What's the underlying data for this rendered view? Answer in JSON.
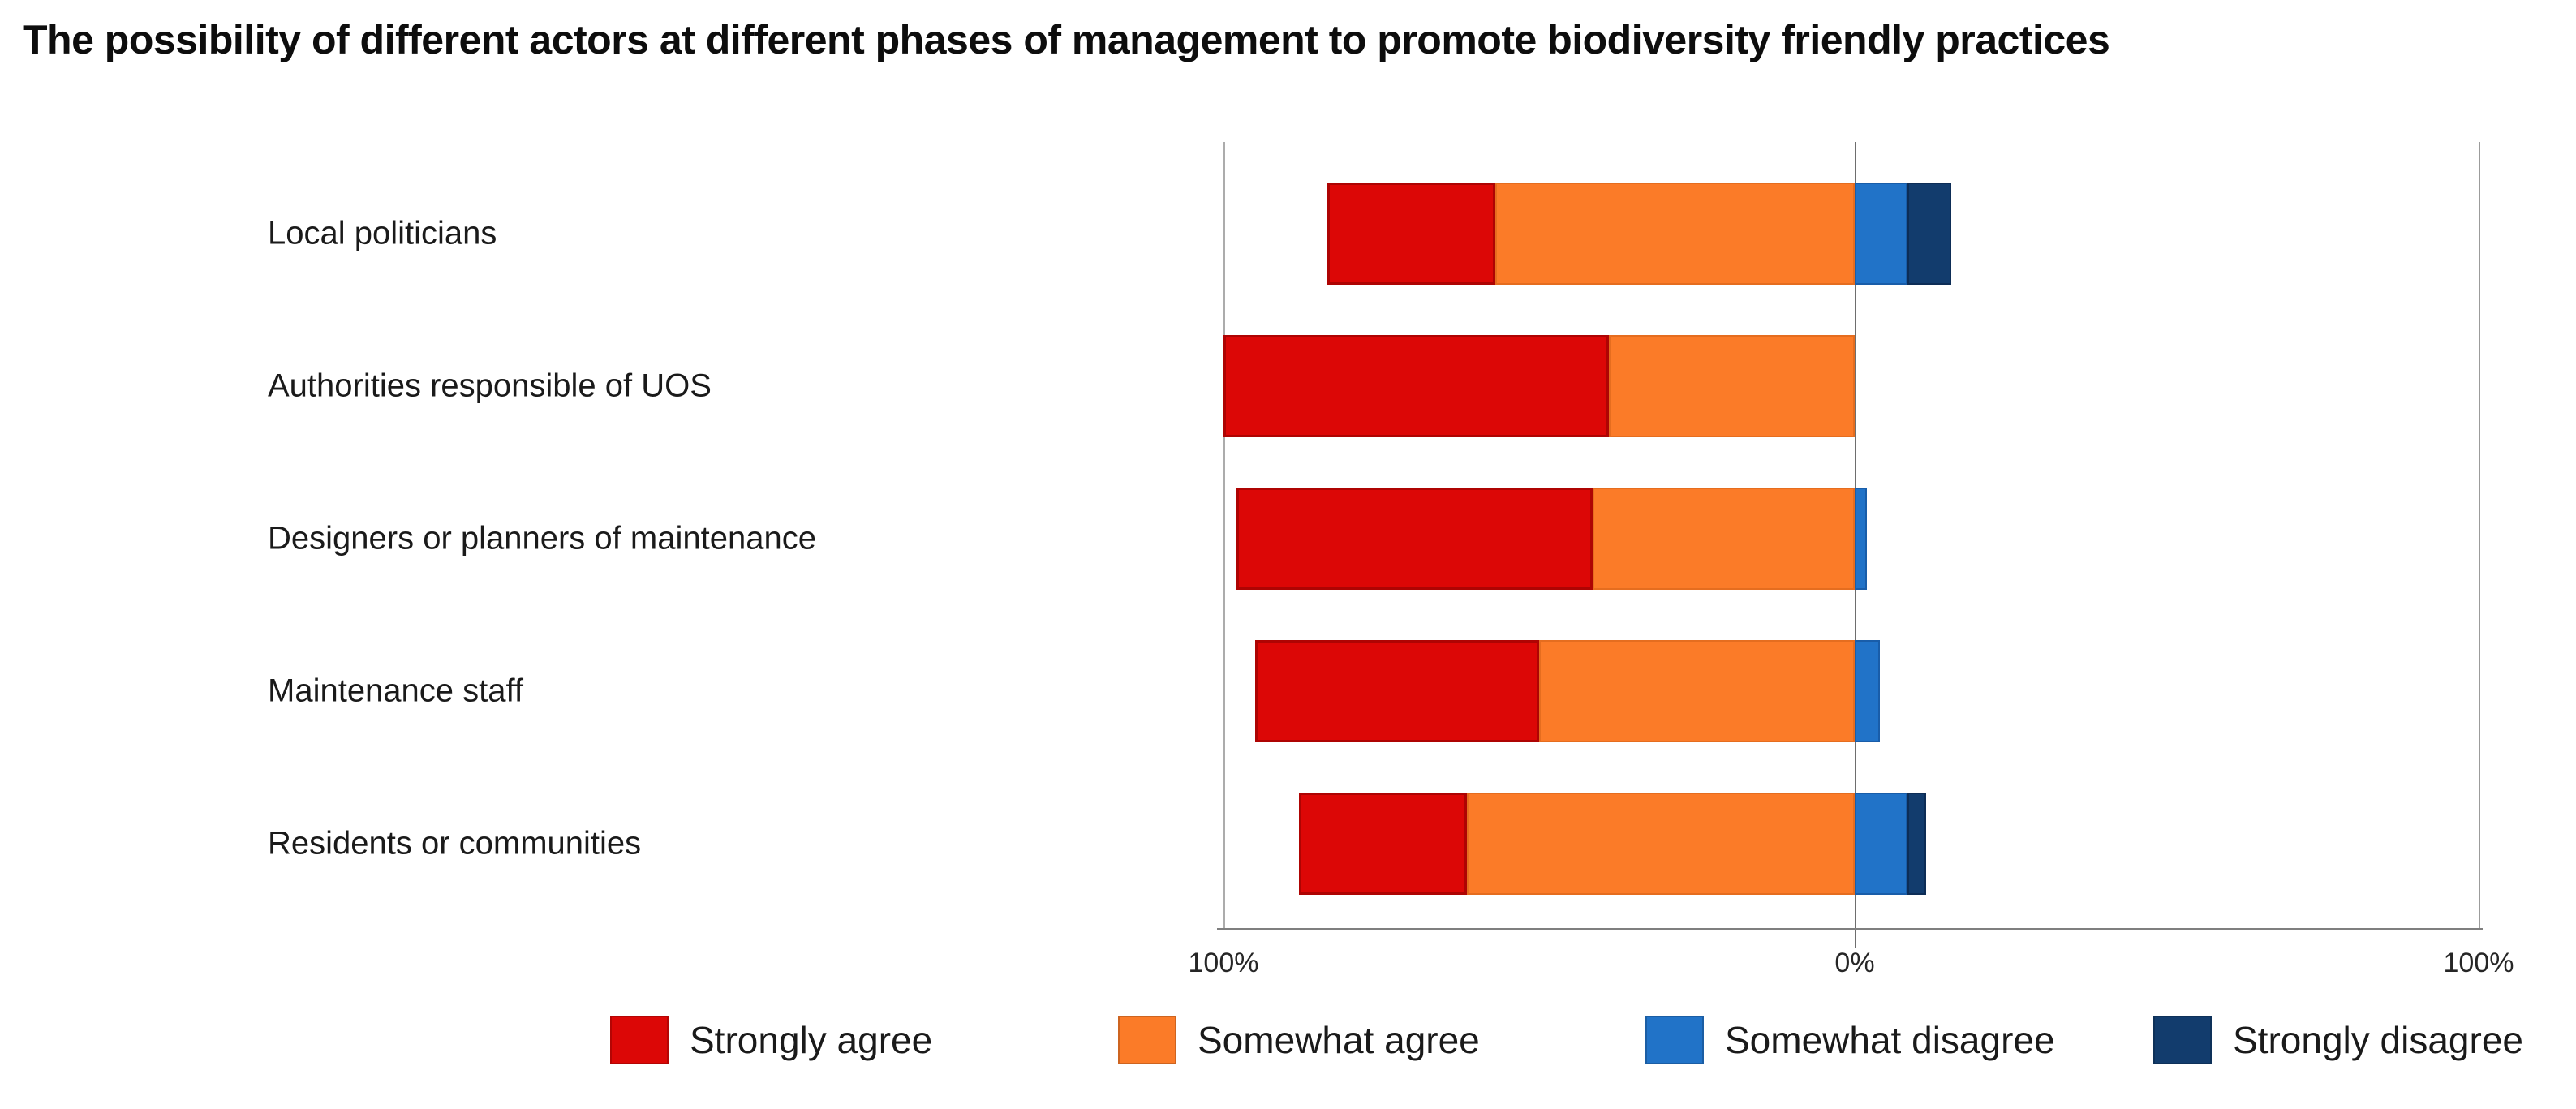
{
  "title": "The possibility of different actors at different phases of management to promote biodiversity friendly practices",
  "chart_data": {
    "type": "bar",
    "subtype": "diverging-stacked-horizontal",
    "title": "The possibility of different actors at different phases of management to promote biodiversity friendly practices",
    "categories": [
      "Local politicians",
      "Authorities responsible of UOS",
      "Designers or planners of maintenance",
      "Maintenance staff",
      "Residents or communities"
    ],
    "series": [
      {
        "name": "Strongly agree",
        "color": "#DC0706",
        "border": "#9E0F0A",
        "side": "left",
        "values": [
          26.5,
          61,
          56.5,
          45,
          26.5
        ]
      },
      {
        "name": "Somewhat agree",
        "color": "#FB7B28",
        "border": "#E0641C",
        "side": "left",
        "values": [
          57,
          39,
          41.5,
          50,
          61.5
        ]
      },
      {
        "name": "Somewhat disagree",
        "color": "#2173C8",
        "border": "#1C64B0",
        "side": "right",
        "values": [
          8.5,
          0,
          2,
          4,
          8.5
        ]
      },
      {
        "name": "Strongly disagree",
        "color": "#123C6D",
        "border": "#0E3059",
        "side": "right",
        "values": [
          7,
          0,
          0,
          0,
          3
        ]
      }
    ],
    "x_tick_labels": [
      "100%",
      "0%",
      "100%"
    ],
    "x_axis_range_pct": [
      -100,
      100
    ],
    "units": "%",
    "grid": "vertical gridlines at left 100%, 0% and right 100%",
    "legend_position": "bottom",
    "xlabel": "",
    "ylabel": ""
  },
  "colors": {
    "background": "#FFFFFF",
    "gridline": "#ACACAC",
    "zero_line": "#6E6E6E",
    "axis_line": "#7F7F7F",
    "label_text": "#1A1A1A",
    "title_text": "#0D0D0D"
  }
}
